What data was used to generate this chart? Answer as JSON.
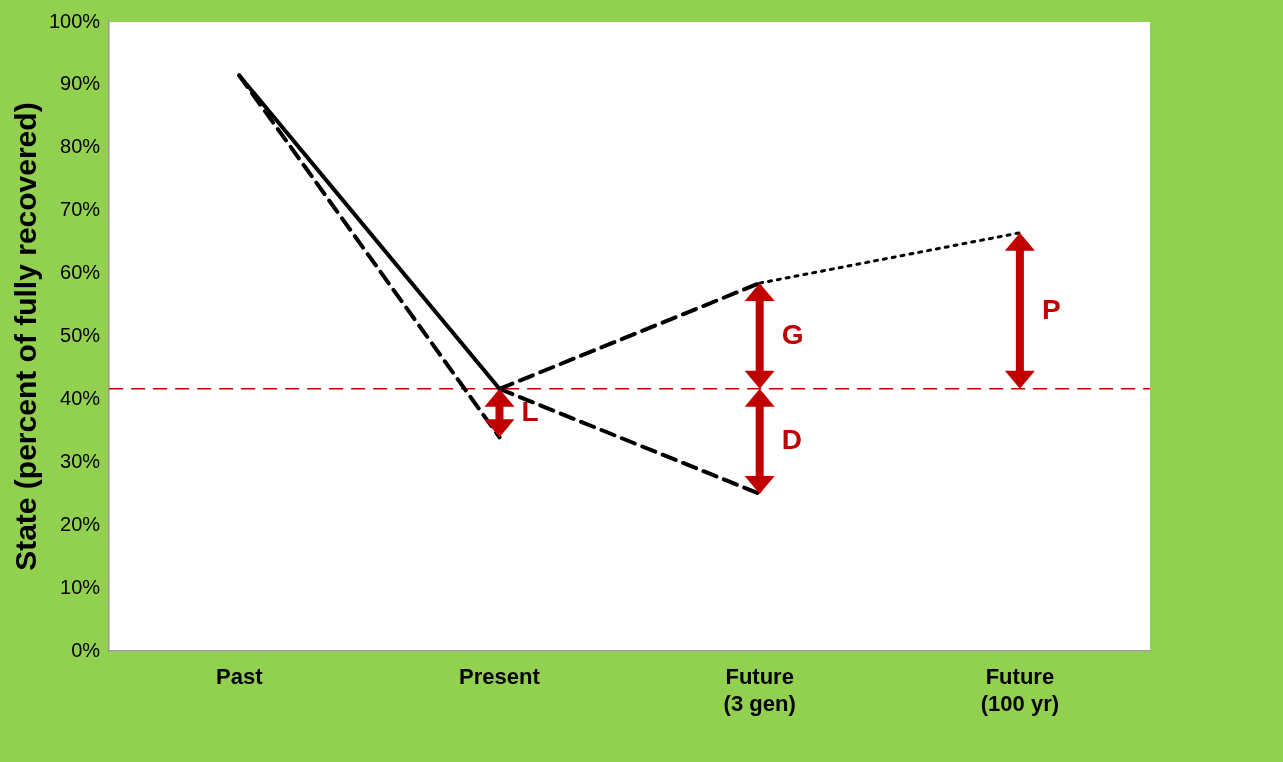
{
  "chart_data": {
    "type": "line",
    "ylabel": "State (percent of fully recovered)",
    "categories": [
      "Past",
      "Present",
      "Future\n(3 gen)",
      "Future\n(100 yr)"
    ],
    "series": [
      {
        "color": "#000000",
        "line_style": "solid",
        "values": [
          91.5,
          41.7,
          null,
          null
        ]
      },
      {
        "color": "#000000",
        "line_style": "dashed",
        "values": [
          91.5,
          34,
          null,
          null
        ]
      },
      {
        "color": "#000000",
        "line_style": "dashed",
        "values": [
          null,
          41.7,
          58.5,
          null
        ]
      },
      {
        "color": "#000000",
        "line_style": "dashed",
        "values": [
          null,
          41.7,
          25,
          null
        ]
      },
      {
        "color": "#000000",
        "line_style": "dotted",
        "values": [
          null,
          null,
          58.5,
          66.5
        ]
      }
    ],
    "ylim": [
      0,
      100
    ],
    "yticks": [
      {
        "value": 0,
        "label": "0%"
      },
      {
        "value": 10,
        "label": "10%"
      },
      {
        "value": 20,
        "label": "20%"
      },
      {
        "value": 30,
        "label": "30%"
      },
      {
        "value": 40,
        "label": "40%"
      },
      {
        "value": 50,
        "label": "50%"
      },
      {
        "value": 60,
        "label": "60%"
      },
      {
        "value": 70,
        "label": "70%"
      },
      {
        "value": 80,
        "label": "80%"
      },
      {
        "value": 90,
        "label": "90%"
      },
      {
        "value": 100,
        "label": "100%"
      }
    ],
    "ref_lines": [
      {
        "axis": "y",
        "value": 41.7,
        "color": "#c00000",
        "line_style": "dashed"
      }
    ],
    "annotations": [
      {
        "text": "L",
        "x": "Present",
        "y": 34
      },
      {
        "text": "G",
        "x": "Future\n(3 gen)",
        "y": 58.5
      },
      {
        "text": "D",
        "x": "Future\n(3 gen)",
        "y": 25
      },
      {
        "text": "P",
        "x": "Future\n(100 yr)",
        "y": 66.5
      }
    ],
    "grid": false,
    "legend": false
  }
}
